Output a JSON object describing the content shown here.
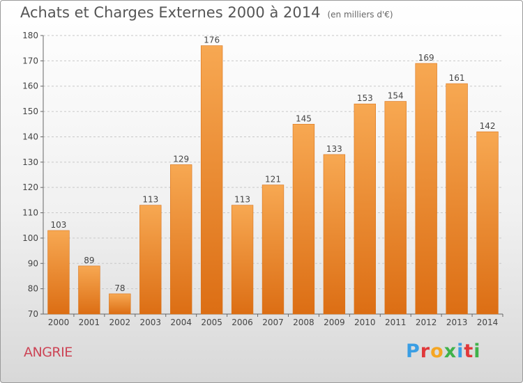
{
  "title": "Achats et Charges Externes 2000 à 2014",
  "subtitle": "(en milliers d'€)",
  "place": "ANGRIE",
  "logo": {
    "text": "Proxiti",
    "colors": [
      "#3a9ee4",
      "#e0383a",
      "#f5a623",
      "#3fb24a",
      "#3a9ee4",
      "#e0383a",
      "#3fb24a"
    ]
  },
  "colors": {
    "bar_top": "#f7a852",
    "bar_bottom": "#dc6e14",
    "place": "#cc4455"
  },
  "chart_data": {
    "type": "bar",
    "categories": [
      "2000",
      "2001",
      "2002",
      "2003",
      "2004",
      "2005",
      "2006",
      "2007",
      "2008",
      "2009",
      "2010",
      "2011",
      "2012",
      "2013",
      "2014"
    ],
    "values": [
      103,
      89,
      78,
      113,
      129,
      176,
      113,
      121,
      145,
      133,
      153,
      154,
      169,
      161,
      142
    ],
    "ylim": [
      70,
      180
    ],
    "yticks": [
      70,
      80,
      90,
      100,
      110,
      120,
      130,
      140,
      150,
      160,
      170,
      180
    ],
    "grid": "horizontal dashed"
  }
}
